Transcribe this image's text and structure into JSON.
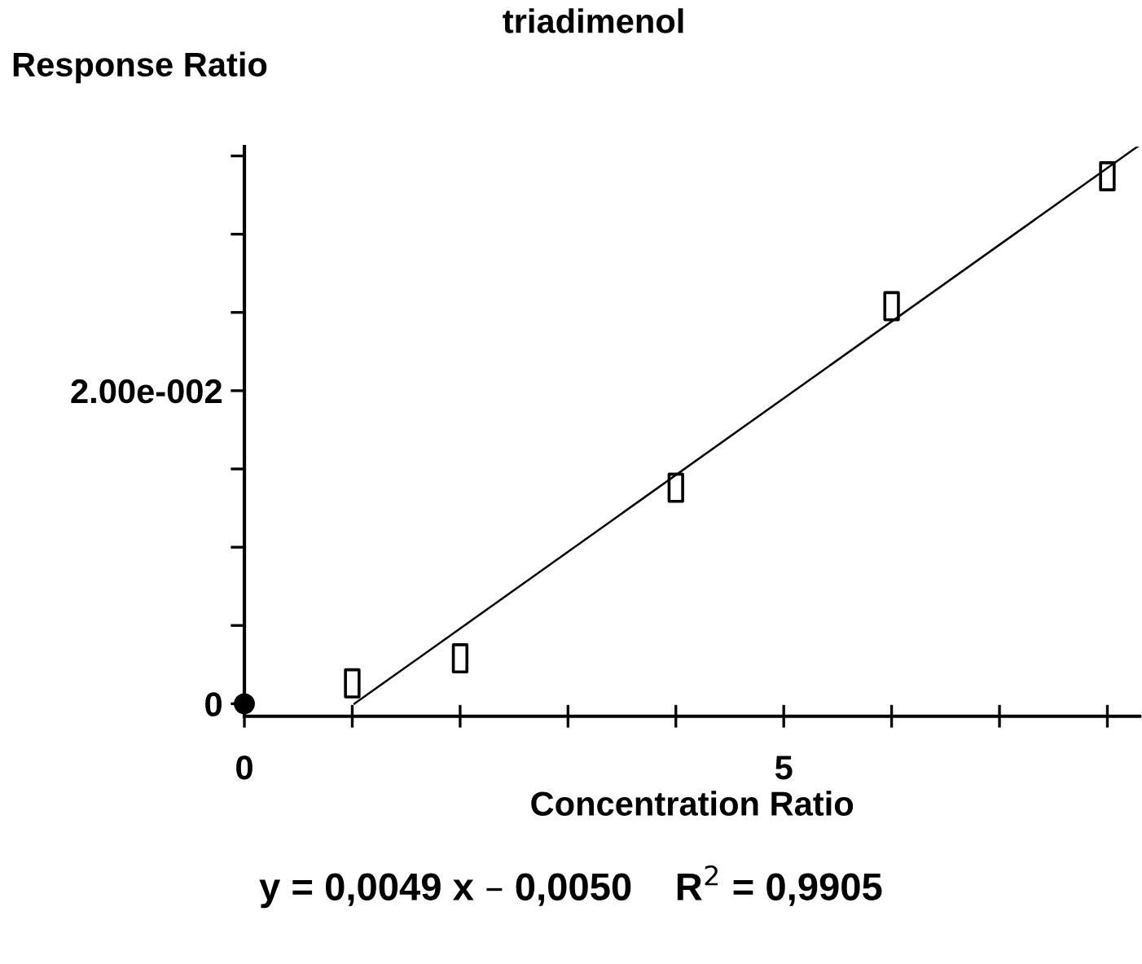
{
  "chart_data": {
    "type": "scatter",
    "title": "triadimenol",
    "xlabel": "Concentration Ratio",
    "ylabel": "Response Ratio",
    "xlim": [
      0,
      8.3
    ],
    "ylim": [
      -0.0008,
      0.0356
    ],
    "xticks": [
      0,
      {
        "value": 1,
        "label": null
      },
      {
        "value": 2,
        "label": null
      },
      {
        "value": 3,
        "label": null
      },
      {
        "value": 4,
        "label": null
      },
      5,
      {
        "value": 6,
        "label": null
      },
      {
        "value": 7,
        "label": null
      },
      {
        "value": 8,
        "label": null
      }
    ],
    "yticks": [
      0,
      {
        "value": 0.005,
        "label": null
      },
      {
        "value": 0.01,
        "label": null
      },
      {
        "value": 0.015,
        "label": null
      },
      {
        "value": 0.02,
        "label": "2.00e-002"
      },
      {
        "value": 0.025,
        "label": null
      },
      {
        "value": 0.03,
        "label": null
      },
      {
        "value": 0.035,
        "label": null
      }
    ],
    "grid": false,
    "legend": false,
    "series": [
      {
        "marker": "square",
        "color": "#000000",
        "x": [
          1,
          2,
          4,
          6,
          8
        ],
        "values": [
          0.0013,
          0.0029,
          0.0138,
          0.0254,
          0.0337
        ]
      },
      {
        "marker": "circle",
        "color": "#000000",
        "x": [
          0
        ],
        "values": [
          0
        ]
      },
      {
        "type": "line",
        "marker": "none",
        "line_style": "solid",
        "color": "#000000",
        "x": [
          1.02,
          8.28
        ],
        "values": [
          0,
          0.0356
        ]
      }
    ],
    "annotations": [
      "y = 0,0049 x – 0,0050    R$^{2}$ = 0,9905"
    ]
  }
}
